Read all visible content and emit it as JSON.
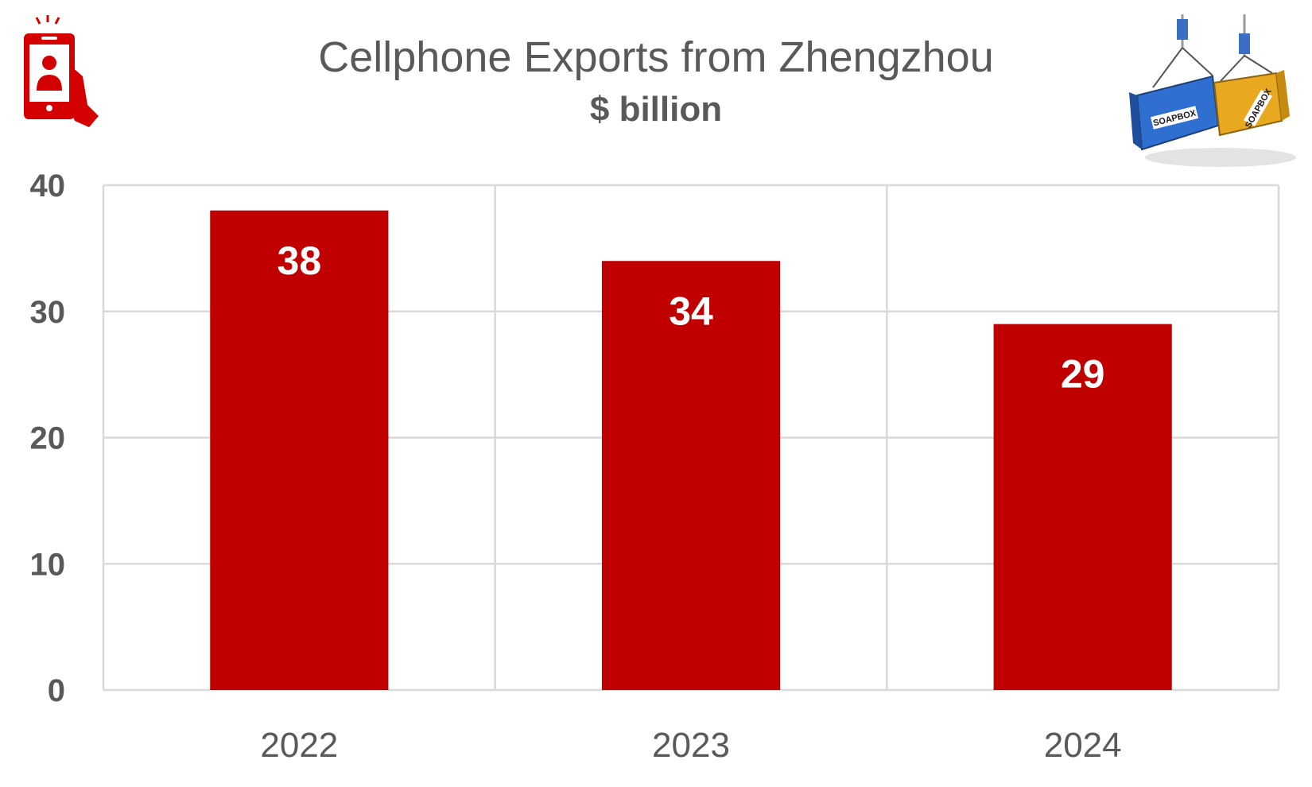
{
  "chart_data": {
    "type": "bar",
    "title": "Cellphone Exports from Zhengzhou",
    "subtitle": "$ billion",
    "categories": [
      "2022",
      "2023",
      "2024"
    ],
    "values": [
      38,
      34,
      29
    ],
    "data_labels": [
      "38",
      "34",
      "29"
    ],
    "ylim": [
      0,
      40
    ],
    "yticks": [
      "0",
      "10",
      "20",
      "30",
      "40"
    ],
    "grid": true,
    "legend": "none"
  },
  "colors": {
    "bar": "#c00000",
    "text": "#595959",
    "grid": "#d9d9d9",
    "label": "#ffffff"
  },
  "icons": {
    "left": "cellphone-user-icon",
    "right": "shipping-containers-logo"
  },
  "logo": {
    "container_text_blue": "SOAPBOX",
    "container_text_yellow": "SOAPBOX"
  }
}
